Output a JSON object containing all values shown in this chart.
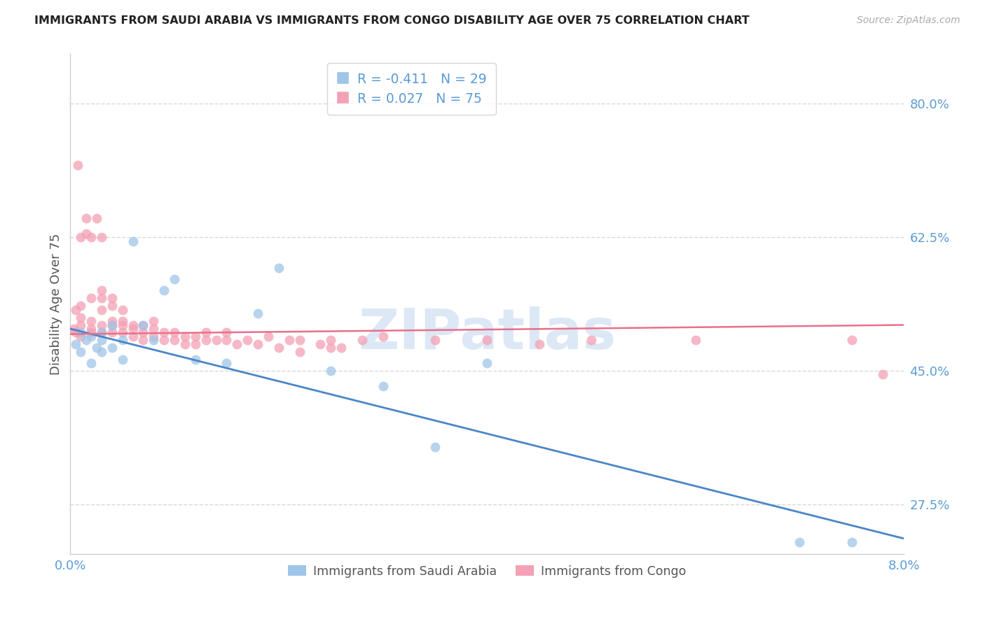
{
  "title": "IMMIGRANTS FROM SAUDI ARABIA VS IMMIGRANTS FROM CONGO DISABILITY AGE OVER 75 CORRELATION CHART",
  "source": "Source: ZipAtlas.com",
  "ylabel": "Disability Age Over 75",
  "ytick_labels": [
    "80.0%",
    "62.5%",
    "45.0%",
    "27.5%"
  ],
  "ytick_values": [
    0.8,
    0.625,
    0.45,
    0.275
  ],
  "xlim": [
    0.0,
    0.08
  ],
  "ylim": [
    0.21,
    0.865
  ],
  "watermark": "ZIPatlas",
  "legend_r_entries": [
    {
      "label": "R = -0.411",
      "n_label": "N = 29",
      "color": "#a8c4e8"
    },
    {
      "label": "R = 0.027",
      "n_label": "N = 75",
      "color": "#f4a8c0"
    }
  ],
  "saudi_scatter_x": [
    0.0005,
    0.001,
    0.001,
    0.0015,
    0.002,
    0.002,
    0.0025,
    0.003,
    0.003,
    0.003,
    0.004,
    0.004,
    0.005,
    0.005,
    0.006,
    0.007,
    0.008,
    0.009,
    0.01,
    0.012,
    0.015,
    0.018,
    0.02,
    0.025,
    0.03,
    0.035,
    0.04,
    0.07,
    0.075
  ],
  "saudi_scatter_y": [
    0.485,
    0.475,
    0.5,
    0.49,
    0.46,
    0.495,
    0.48,
    0.5,
    0.49,
    0.475,
    0.48,
    0.51,
    0.465,
    0.49,
    0.62,
    0.51,
    0.49,
    0.555,
    0.57,
    0.465,
    0.46,
    0.525,
    0.585,
    0.45,
    0.43,
    0.35,
    0.46,
    0.225,
    0.225
  ],
  "congo_scatter_x": [
    0.0003,
    0.0005,
    0.0005,
    0.0007,
    0.001,
    0.001,
    0.001,
    0.001,
    0.001,
    0.0015,
    0.0015,
    0.002,
    0.002,
    0.002,
    0.002,
    0.002,
    0.0025,
    0.003,
    0.003,
    0.003,
    0.003,
    0.003,
    0.003,
    0.004,
    0.004,
    0.004,
    0.004,
    0.004,
    0.005,
    0.005,
    0.005,
    0.005,
    0.006,
    0.006,
    0.006,
    0.007,
    0.007,
    0.007,
    0.008,
    0.008,
    0.008,
    0.009,
    0.009,
    0.01,
    0.01,
    0.011,
    0.011,
    0.012,
    0.012,
    0.013,
    0.013,
    0.014,
    0.015,
    0.015,
    0.016,
    0.017,
    0.018,
    0.019,
    0.02,
    0.021,
    0.022,
    0.022,
    0.024,
    0.025,
    0.025,
    0.026,
    0.028,
    0.03,
    0.035,
    0.04,
    0.045,
    0.05,
    0.06,
    0.075,
    0.078
  ],
  "congo_scatter_y": [
    0.505,
    0.5,
    0.53,
    0.72,
    0.495,
    0.51,
    0.52,
    0.535,
    0.625,
    0.63,
    0.65,
    0.5,
    0.505,
    0.515,
    0.545,
    0.625,
    0.65,
    0.5,
    0.51,
    0.53,
    0.545,
    0.555,
    0.625,
    0.5,
    0.51,
    0.515,
    0.535,
    0.545,
    0.5,
    0.51,
    0.515,
    0.53,
    0.495,
    0.505,
    0.51,
    0.49,
    0.5,
    0.51,
    0.495,
    0.505,
    0.515,
    0.49,
    0.5,
    0.49,
    0.5,
    0.485,
    0.495,
    0.485,
    0.495,
    0.49,
    0.5,
    0.49,
    0.49,
    0.5,
    0.485,
    0.49,
    0.485,
    0.495,
    0.48,
    0.49,
    0.475,
    0.49,
    0.485,
    0.48,
    0.49,
    0.48,
    0.49,
    0.495,
    0.49,
    0.49,
    0.485,
    0.49,
    0.49,
    0.49,
    0.445
  ],
  "saudi_line_x": [
    0.0,
    0.08
  ],
  "saudi_line_y": [
    0.505,
    0.23
  ],
  "congo_line_x": [
    0.0,
    0.08
  ],
  "congo_line_y": [
    0.498,
    0.51
  ],
  "saudi_color": "#9fc5e8",
  "congo_color": "#f4a0b5",
  "saudi_line_color": "#4a86c8",
  "congo_line_color": "#e8708a",
  "background_color": "#ffffff",
  "grid_color": "#d8d8d8",
  "title_color": "#222222",
  "ytick_color": "#5b9bd5",
  "xtick_color": "#5b9bd5",
  "watermark_color": "#dce8f5",
  "legend_box_color": "#ffffff",
  "legend_border_color": "#cccccc",
  "bottom_legend": [
    {
      "label": "Immigrants from Saudi Arabia",
      "color": "#9fc5e8"
    },
    {
      "label": "Immigrants from Congo",
      "color": "#f4a0b5"
    }
  ]
}
